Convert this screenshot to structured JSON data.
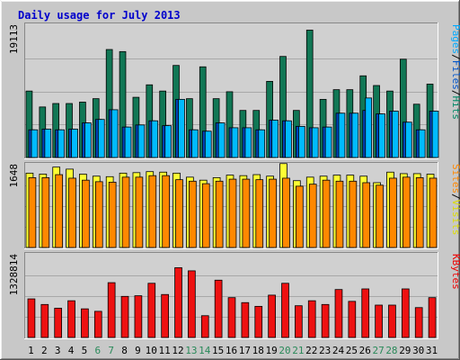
{
  "chart_data": {
    "type": "bar",
    "title": "Daily usage for July 2013",
    "categories": [
      "1",
      "2",
      "3",
      "4",
      "5",
      "6",
      "7",
      "8",
      "9",
      "10",
      "11",
      "12",
      "13",
      "14",
      "15",
      "16",
      "17",
      "18",
      "19",
      "20",
      "21",
      "22",
      "23",
      "24",
      "25",
      "26",
      "27",
      "28",
      "29",
      "30",
      "31"
    ],
    "weekend_days": [
      "6",
      "7",
      "13",
      "14",
      "20",
      "21",
      "27",
      "28"
    ],
    "panels": [
      {
        "id": "hits-files-pages",
        "ymax": 19113,
        "ymax_label": "19113",
        "legend": [
          {
            "text": "Pages",
            "color": "#00aaff"
          },
          {
            "text": "/",
            "color": "#000000"
          },
          {
            "text": "Files",
            "color": "#0055cc"
          },
          {
            "text": "/",
            "color": "#000000"
          },
          {
            "text": "Hits",
            "color": "#008866"
          }
        ],
        "series": [
          {
            "name": "Hits",
            "color": "#117755",
            "values": [
              9600,
              7300,
              7800,
              7800,
              8000,
              8500,
              15600,
              15300,
              8700,
              10500,
              9600,
              13300,
              8500,
              13100,
              8500,
              9500,
              6800,
              6800,
              11000,
              14600,
              6800,
              18400,
              8400,
              9800,
              9800,
              11800,
              10400,
              9600,
              14200,
              7700,
              10600
            ]
          },
          {
            "name": "Files",
            "color": "#0044bb",
            "values": [
              4000,
              4100,
              4000,
              4100,
              5000,
              5500,
              6900,
              4400,
              4700,
              5300,
              4600,
              8400,
              4000,
              3800,
              5000,
              4300,
              4300,
              4000,
              5400,
              5300,
              4500,
              4300,
              4400,
              6400,
              6400,
              6800,
              6300,
              6700,
              5100,
              4000,
              6700
            ]
          },
          {
            "name": "Pages",
            "color": "#00bbff",
            "values": [
              4000,
              4100,
              4000,
              4100,
              5000,
              5500,
              6900,
              4400,
              4700,
              5300,
              4600,
              8400,
              4000,
              3800,
              5000,
              4300,
              4300,
              4000,
              5400,
              5300,
              4500,
              4300,
              4400,
              6400,
              6400,
              8600,
              6300,
              6700,
              5100,
              4000,
              6700
            ]
          }
        ]
      },
      {
        "id": "visits-sites",
        "ymax": 1648,
        "ymax_label": "1648",
        "legend": [
          {
            "text": "Sites",
            "color": "#ff8800"
          },
          {
            "text": "/",
            "color": "#000000"
          },
          {
            "text": "Visits",
            "color": "#dddd00"
          }
        ],
        "series": [
          {
            "name": "Visits",
            "color": "#ffff33",
            "values": [
              1480,
              1460,
              1600,
              1560,
              1460,
              1420,
              1410,
              1480,
              1490,
              1510,
              1500,
              1480,
              1400,
              1340,
              1390,
              1440,
              1430,
              1450,
              1420,
              1670,
              1330,
              1400,
              1420,
              1440,
              1440,
              1420,
              1290,
              1500,
              1470,
              1470,
              1460
            ]
          },
          {
            "name": "Sites",
            "color": "#ff8800",
            "values": [
              1390,
              1390,
              1450,
              1380,
              1340,
              1310,
              1300,
              1400,
              1400,
              1430,
              1430,
              1350,
              1320,
              1270,
              1320,
              1360,
              1360,
              1350,
              1360,
              1380,
              1220,
              1260,
              1340,
              1320,
              1320,
              1290,
              1240,
              1380,
              1400,
              1390,
              1380
            ]
          }
        ]
      },
      {
        "id": "kbytes",
        "ymax": 1328814,
        "ymax_label": "1328814",
        "legend": [
          {
            "text": "KBytes",
            "color": "#ee0000"
          }
        ],
        "series": [
          {
            "name": "KBytes",
            "color": "#ee1111",
            "values": [
              620000,
              530000,
              470000,
              590000,
              460000,
              420000,
              880000,
              660000,
              670000,
              870000,
              690000,
              1120000,
              1070000,
              350000,
              920000,
              640000,
              560000,
              500000,
              680000,
              870000,
              510000,
              590000,
              530000,
              770000,
              580000,
              780000,
              520000,
              520000,
              780000,
              480000,
              640000
            ]
          }
        ]
      }
    ]
  }
}
